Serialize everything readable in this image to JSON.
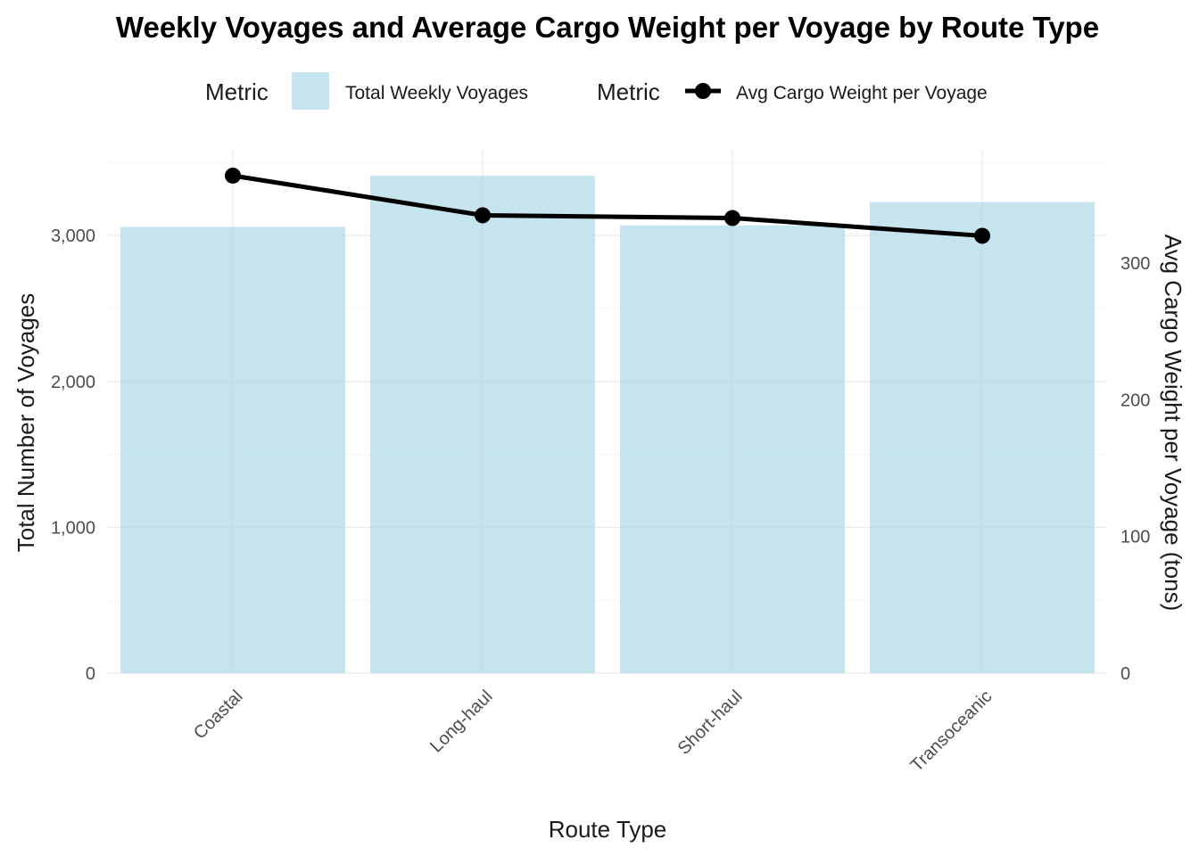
{
  "chart_data": {
    "type": "bar",
    "title": "Weekly Voyages and Average Cargo Weight per Voyage by Route Type",
    "xlabel": "Route Type",
    "ylabel": "Total Number of Voyages",
    "y2label": "Avg Cargo Weight per Voyage (tons)",
    "categories": [
      "Coastal",
      "Long-haul",
      "Short-haul",
      "Transoceanic"
    ],
    "series": [
      {
        "name": "Total Weekly Voyages",
        "type": "bar",
        "axis": "left",
        "values": [
          3060,
          3410,
          3070,
          3230
        ],
        "color": "#add8e6",
        "opacity": 0.7
      },
      {
        "name": "Avg Cargo Weight per Voyage",
        "type": "line",
        "axis": "right",
        "values": [
          364,
          335,
          333,
          320
        ],
        "color": "#000000"
      }
    ],
    "ylim": [
      0,
      3500
    ],
    "y2lim": [
      0,
      380
    ],
    "yticks": [
      {
        "value": 0,
        "label": "0"
      },
      {
        "value": 1000,
        "label": "1,000"
      },
      {
        "value": 2000,
        "label": "2,000"
      },
      {
        "value": 3000,
        "label": "3,000"
      }
    ],
    "y2ticks": [
      {
        "value": 0,
        "label": "0"
      },
      {
        "value": 100,
        "label": "100"
      },
      {
        "value": 200,
        "label": "200"
      },
      {
        "value": 300,
        "label": "300"
      }
    ],
    "legend": {
      "placement": "top",
      "groups": [
        {
          "title": "Metric",
          "label": "Total Weekly Voyages"
        },
        {
          "title": "Metric",
          "label": "Avg Cargo Weight per Voyage"
        }
      ]
    },
    "grid": true
  }
}
